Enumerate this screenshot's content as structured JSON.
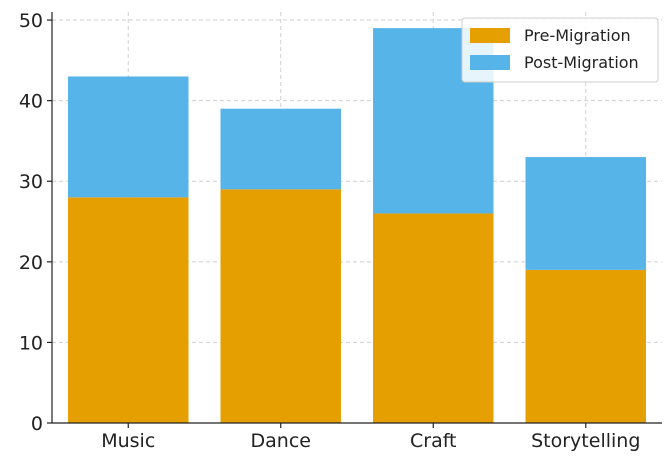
{
  "chart_data": {
    "type": "bar",
    "stacked": true,
    "title": "",
    "xlabel": "",
    "ylabel": "",
    "categories": [
      "Music",
      "Dance",
      "Craft",
      "Storytelling"
    ],
    "series": [
      {
        "name": "Pre-Migration",
        "values": [
          28,
          29,
          26,
          19
        ],
        "color": "#E69F00"
      },
      {
        "name": "Post-Migration",
        "values": [
          15,
          10,
          23,
          14
        ],
        "color": "#56B4E9"
      }
    ],
    "ylim": [
      0,
      51
    ],
    "yticks": [
      0,
      10,
      20,
      30,
      40,
      50
    ],
    "grid": true,
    "legend_position": "top-right"
  }
}
